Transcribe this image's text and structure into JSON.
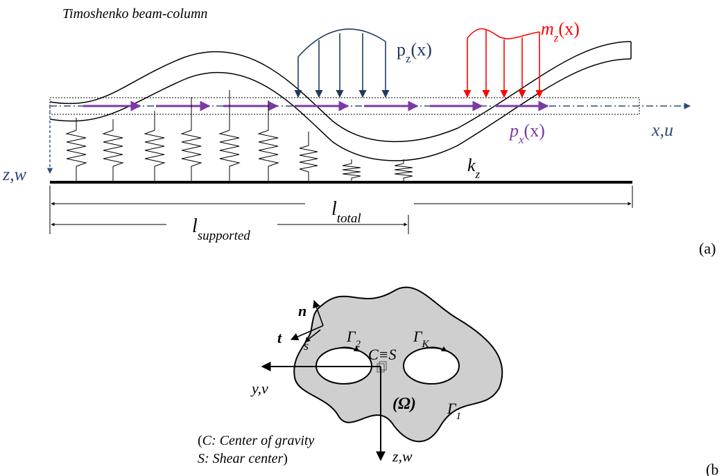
{
  "colors": {
    "ink": "#000000",
    "axis_blue": "#2f4b7c",
    "load_navy": "#1f3a5f",
    "moment_red": "#ff0000",
    "axial_purple": "#7a3aa6",
    "section_fill": "#cfcfcf"
  },
  "panel_a": {
    "title": "Timoshenko beam-column",
    "load_pz_base": "p",
    "load_pz_sub": "z",
    "load_pz_arg": "(x)",
    "load_mz_base": "m",
    "load_mz_sub": "z",
    "load_mz_arg": "(x)",
    "load_px_base": "p",
    "load_px_sub": "x",
    "load_px_arg": "(x)",
    "axis_x": "x,u",
    "axis_z": "z,w",
    "spring_base": "k",
    "spring_sub": "z",
    "dim_total_base": "l",
    "dim_total_sub": "total",
    "dim_supported_base": "l",
    "dim_supported_sub": "supported",
    "panel_label": "(a)"
  },
  "panel_b": {
    "vec_n": "n",
    "vec_t": "t",
    "vec_s": "s",
    "gamma2_base": "Γ",
    "gamma2_sub": "2",
    "gammaK_base": "Γ",
    "gammaK_sub": "K",
    "gamma1_base": "Γ",
    "gamma1_sub": "1",
    "center_label": "C≡S",
    "domain_label": "(Ω)",
    "axis_y": "y,v",
    "axis_z": "z,w",
    "legend_line1": "C: Center of gravity",
    "legend_line2": "S: Shear center",
    "legend_open": "(",
    "legend_close": ")",
    "panel_label": "(b"
  }
}
